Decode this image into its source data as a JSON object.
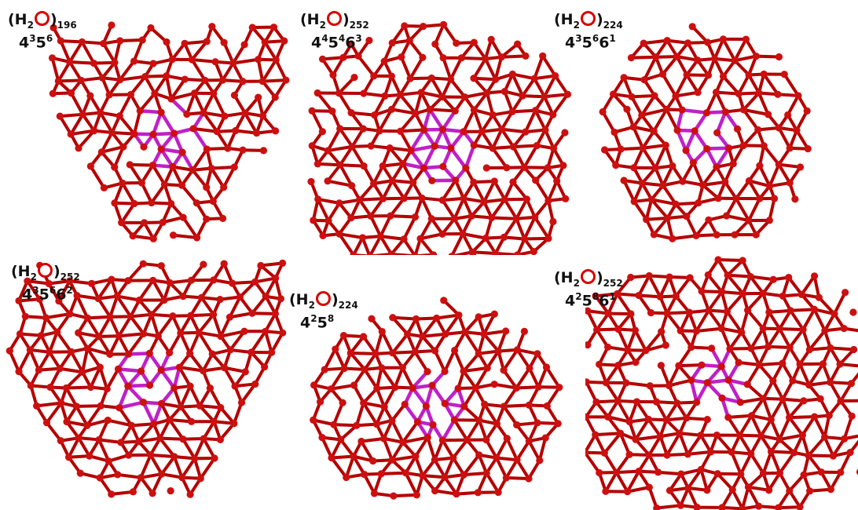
{
  "colors": {
    "bond": "#b40000",
    "node": "#cc1010",
    "highlight": "#c020c8",
    "background": "#ffffff"
  },
  "clusters": [
    {
      "id": "c196",
      "shape": "triangle",
      "formula": {
        "open": "(H",
        "h_sub": "2",
        "o_icon": "oxygen-atom-icon",
        "close": ")",
        "count": "196"
      },
      "ring": [
        {
          "base": "4",
          "exp": "3"
        },
        {
          "base": "5",
          "exp": "6"
        }
      ]
    },
    {
      "id": "c252a",
      "shape": "barrel",
      "formula": {
        "open": "(H",
        "h_sub": "2",
        "o_icon": "oxygen-atom-icon",
        "close": ")",
        "count": "252"
      },
      "ring": [
        {
          "base": "4",
          "exp": "4"
        },
        {
          "base": "5",
          "exp": "4"
        },
        {
          "base": "6",
          "exp": "3"
        }
      ]
    },
    {
      "id": "c224a",
      "shape": "round",
      "formula": {
        "open": "(H",
        "h_sub": "2",
        "o_icon": "oxygen-atom-icon",
        "close": ")",
        "count": "224"
      },
      "ring": [
        {
          "base": "4",
          "exp": "3"
        },
        {
          "base": "5",
          "exp": "6"
        },
        {
          "base": "6",
          "exp": "1"
        }
      ]
    },
    {
      "id": "c252b",
      "shape": "triangle",
      "formula": {
        "open": "(H",
        "h_sub": "2",
        "o_icon": "oxygen-atom-icon",
        "close": ")",
        "count": "252"
      },
      "ring": [
        {
          "base": "4",
          "exp": "3"
        },
        {
          "base": "5",
          "exp": "6"
        },
        {
          "base": "6",
          "exp": "2"
        }
      ]
    },
    {
      "id": "c224b",
      "shape": "oval",
      "formula": {
        "open": "(H",
        "h_sub": "2",
        "o_icon": "oxygen-atom-icon",
        "close": ")",
        "count": "224"
      },
      "ring": [
        {
          "base": "4",
          "exp": "2"
        },
        {
          "base": "5",
          "exp": "8"
        }
      ]
    },
    {
      "id": "c252c",
      "shape": "wide",
      "formula": {
        "open": "(H",
        "h_sub": "2",
        "o_icon": "oxygen-atom-icon",
        "close": ")",
        "count": "252"
      },
      "ring": [
        {
          "base": "4",
          "exp": "2"
        },
        {
          "base": "5",
          "exp": "8"
        },
        {
          "base": "6",
          "exp": "1"
        }
      ]
    }
  ]
}
